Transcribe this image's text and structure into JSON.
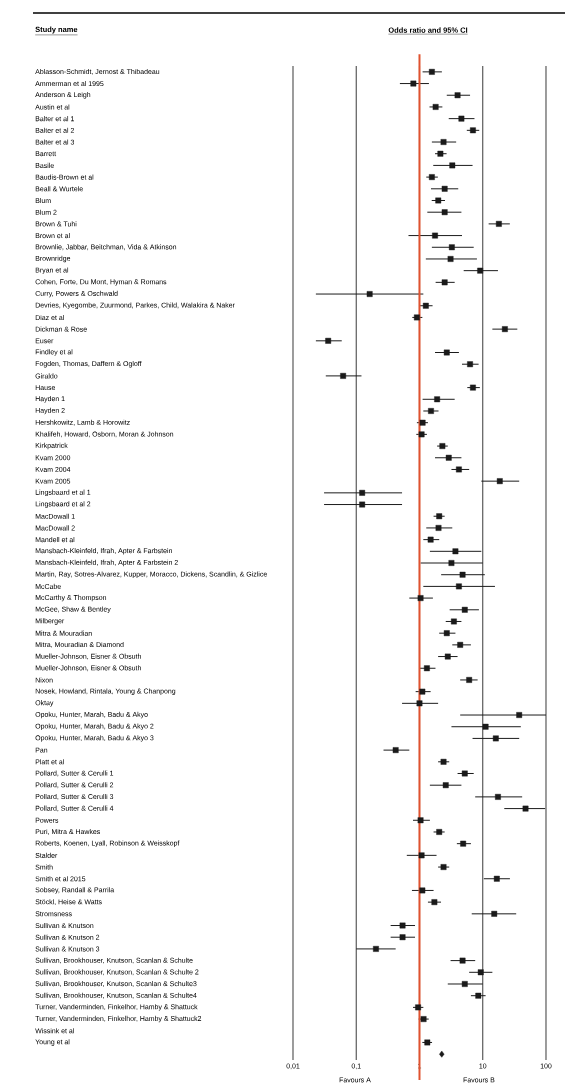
{
  "chart_data": {
    "type": "scatter",
    "orientation": "horizontal",
    "title": "Odds ratio and 95% CI",
    "categories": [
      "Ablasson-Schmidt, Jernost & Thibadeau",
      "Ammerman et al 1995",
      "Anderson & Leigh",
      "Austin et al",
      "Balter et al 1",
      "Balter et al 2",
      "Balter et al 3",
      "Barrett",
      "Basile",
      "Baudis-Brown et al",
      "Beall & Wurtele",
      "Blum",
      "Blum 2",
      "Brown & Tuhi",
      "Brown et al",
      "Brownlie, Jabbar, Beitchman, Vida & Atkinson",
      "Brownridge",
      "Bryan et al",
      "Cohen, Forte, Du Mont, Hyman & Romans",
      "Curry, Powers & Oschwald",
      "Devries, Kyegombe, Zuurmond, Parkes, Child, Walakira & Naker",
      "Diaz et al",
      "Dickman & Rose",
      "Euser",
      "Findley et al",
      "Fogden, Thomas, Daffern & Ogloff",
      "Giraldo",
      "Hause",
      "Hayden 1",
      "Hayden 2",
      "Hershkowitz, Lamb & Horowitz",
      "Khalifeh, Howard, Osborn, Moran & Johnson",
      "Kirkpatrick",
      "Kvam 2000",
      "Kvam 2004",
      "Kvam 2005",
      "Lingsbaard et al 1",
      "Lingsbaard et al 2",
      "MacDowall 1",
      "MacDowall 2",
      "Mandell et al",
      "Mansbach-Kleinfeld, Ifrah, Apter & Farbstein",
      "Mansbach-Kleinfeld, Ifrah, Apter & Farbstein 2",
      "Martin, Ray, Sotres-Alvarez, Kupper, Moracco, Dickens, Scandlin, & Gizlice",
      "McCabe",
      "McCarthy & Thompson",
      "McGee, Shaw & Bentley",
      "Milberger",
      "Mitra & Mouradian",
      "Mitra, Mouradian & Diamond",
      "Mueller-Johnson, Eisner & Obsuth",
      "Mueller-Johnson, Eisner & Obsuth",
      "Nixon",
      "Nosek, Howland, Rintala, Young & Chanpong",
      "Oktay",
      "Opoku, Hunter, Marah, Badu & Akyo",
      "Opoku, Hunter, Marah, Badu & Akyo 2",
      "Opoku, Hunter, Marah, Badu & Akyo 3",
      "Pan",
      "Platt et al",
      "Pollard, Sutter & Cerulli 1",
      "Pollard, Sutter & Cerulli 2",
      "Pollard, Sutter & Cerulli 3",
      "Pollard, Sutter & Cerulli 4",
      "Powers",
      "Puri, Mitra & Hawkes",
      "Roberts, Koenen, Lyall, Robinson & Weisskopf",
      "Stalder",
      "Smith",
      "Smith et al 2015",
      "Sobsey, Randall & Parrila",
      "Stöckl, Heise & Watts",
      "Stromsness",
      "Sullivan & Knutson",
      "Sullivan & Knutson 2",
      "Sullivan & Knutson 3",
      "Sullivan, Brookhouser, Knutson, Scanlan & Schulte",
      "Sullivan, Brookhouser, Knutson, Scanlan & Schulte 2",
      "Sullivan, Brookhouser, Knutson, Scanlan & Schulte3",
      "Sullivan, Brookhouser, Knutson, Scanlan & Schulte4",
      "Turner, Vanderminden, Finkelhor, Hamby & Shattuck",
      "Turner, Vanderminden, Finkelhor, Hamby & Shattuck2",
      "Wissink et al",
      "Young et al",
      null
    ],
    "series": [
      {
        "marker": "square",
        "color": "#1a1a1a",
        "values": [
          1.57,
          0.8,
          4.0,
          1.8,
          4.6,
          7.0,
          2.4,
          2.14,
          3.3,
          1.57,
          2.5,
          1.98,
          2.5,
          18,
          1.76,
          3.25,
          3.1,
          9.1,
          2.5,
          0.163,
          1.26,
          0.91,
          22.4,
          0.036,
          2.7,
          6.3,
          0.062,
          7.0,
          1.9,
          1.52,
          1.12,
          1.08,
          2.3,
          2.9,
          4.2,
          18.6,
          0.124,
          0.124,
          2.05,
          2.0,
          1.5,
          3.7,
          3.2,
          4.8,
          4.2,
          1.04,
          5.2,
          3.5,
          2.7,
          4.4,
          2.8,
          1.31,
          6.1,
          1.11,
          1.0,
          37.7,
          11.1,
          16.1,
          0.42,
          2.4,
          5.2,
          2.6,
          17.4,
          47.5,
          1.04,
          2.05,
          4.9,
          1.08,
          2.4,
          16.7,
          1.11,
          1.72,
          15.2,
          0.54,
          0.54,
          0.205,
          4.8,
          9.3,
          5.2,
          8.5,
          0.95,
          1.16,
          null,
          1.33,
          null
        ],
        "errors": [
          [
            1.12,
            2.26
          ],
          [
            0.49,
            1.41
          ],
          [
            2.7,
            6.3
          ],
          [
            1.44,
            2.3
          ],
          [
            2.9,
            7.4
          ],
          [
            5.6,
            8.8
          ],
          [
            1.57,
            3.8
          ],
          [
            1.76,
            2.68
          ],
          [
            1.65,
            6.9
          ],
          [
            1.28,
            1.95
          ],
          [
            1.52,
            4.1
          ],
          [
            1.56,
            2.53
          ],
          [
            1.33,
            4.6
          ],
          [
            12.4,
            26.8
          ],
          [
            0.67,
            4.7
          ],
          [
            1.57,
            7.2
          ],
          [
            1.26,
            8.1
          ],
          [
            5.0,
            17.4
          ],
          [
            1.8,
            3.6
          ],
          [
            0.023,
            1.15
          ],
          [
            1.02,
            1.61
          ],
          [
            0.77,
            1.11
          ],
          [
            14.2,
            35.2
          ],
          [
            0.023,
            0.059
          ],
          [
            1.76,
            4.2
          ],
          [
            4.7,
            8.6
          ],
          [
            0.033,
            0.121
          ],
          [
            5.7,
            9.0
          ],
          [
            1.12,
            3.6
          ],
          [
            1.15,
            2.0
          ],
          [
            0.91,
            1.36
          ],
          [
            0.89,
            1.31
          ],
          [
            1.9,
            2.8
          ],
          [
            1.76,
            4.6
          ],
          [
            3.2,
            6.1
          ],
          [
            9.5,
            37.7
          ],
          [
            0.031,
            0.53
          ],
          [
            0.031,
            0.53
          ],
          [
            1.67,
            2.5
          ],
          [
            1.28,
            3.3
          ],
          [
            1.15,
            2.05
          ],
          [
            1.46,
            9.5
          ],
          [
            1.04,
            10
          ],
          [
            2.2,
            10.8
          ],
          [
            1.15,
            15.6
          ],
          [
            0.69,
            1.63
          ],
          [
            3.0,
            8.7
          ],
          [
            2.6,
            4.6
          ],
          [
            2.05,
            3.7
          ],
          [
            3.3,
            6.5
          ],
          [
            1.97,
            4.0
          ],
          [
            1.0,
            1.79
          ],
          [
            4.4,
            8.3
          ],
          [
            0.87,
            1.5
          ],
          [
            0.53,
            1.97
          ],
          [
            4.4,
            100
          ],
          [
            3.2,
            40
          ],
          [
            6.9,
            37.7
          ],
          [
            0.27,
            0.69
          ],
          [
            1.97,
            2.95
          ],
          [
            4.0,
            7.2
          ],
          [
            1.46,
            4.6
          ],
          [
            7.6,
            42
          ],
          [
            21.9,
            97
          ],
          [
            0.79,
            1.46
          ],
          [
            1.67,
            2.5
          ],
          [
            3.9,
            6.5
          ],
          [
            0.63,
            1.86
          ],
          [
            1.97,
            2.95
          ],
          [
            10.4,
            26.9
          ],
          [
            0.76,
            1.67
          ],
          [
            1.36,
            2.19
          ],
          [
            6.7,
            33.8
          ],
          [
            0.35,
            0.85
          ],
          [
            0.35,
            0.85
          ],
          [
            0.1,
            0.42
          ],
          [
            3.1,
            7.6
          ],
          [
            6.1,
            14.2
          ],
          [
            2.8,
            10
          ],
          [
            6.5,
            11.1
          ],
          [
            0.79,
            1.15
          ],
          [
            0.97,
            1.4
          ],
          null,
          [
            1.11,
            1.58
          ],
          null
        ]
      },
      {
        "marker": "diamond",
        "color": "#1a1a1a",
        "values": [
          null,
          null,
          null,
          null,
          null,
          null,
          null,
          null,
          null,
          null,
          null,
          null,
          null,
          null,
          null,
          null,
          null,
          null,
          null,
          null,
          null,
          null,
          null,
          null,
          null,
          null,
          null,
          null,
          null,
          null,
          null,
          null,
          null,
          null,
          null,
          null,
          null,
          null,
          null,
          null,
          null,
          null,
          null,
          null,
          null,
          null,
          null,
          null,
          null,
          null,
          null,
          null,
          null,
          null,
          null,
          null,
          null,
          null,
          null,
          null,
          null,
          null,
          null,
          null,
          null,
          null,
          null,
          null,
          null,
          null,
          null,
          null,
          null,
          null,
          null,
          null,
          null,
          null,
          null,
          null,
          null,
          null,
          null,
          null,
          2.25
        ]
      }
    ],
    "log": "x",
    "xlim": [
      0.01,
      100
    ],
    "xticks": [
      {
        "value": 0.01,
        "label": "0,01"
      },
      {
        "value": 0.1,
        "label": "0,1"
      },
      1,
      10,
      100
    ],
    "grid": "x",
    "ref_lines": [
      {
        "axis": "x",
        "value": 1,
        "color": "#e0522f"
      }
    ],
    "annotations": [
      "Study name",
      "Favours A",
      "Favours B"
    ]
  }
}
